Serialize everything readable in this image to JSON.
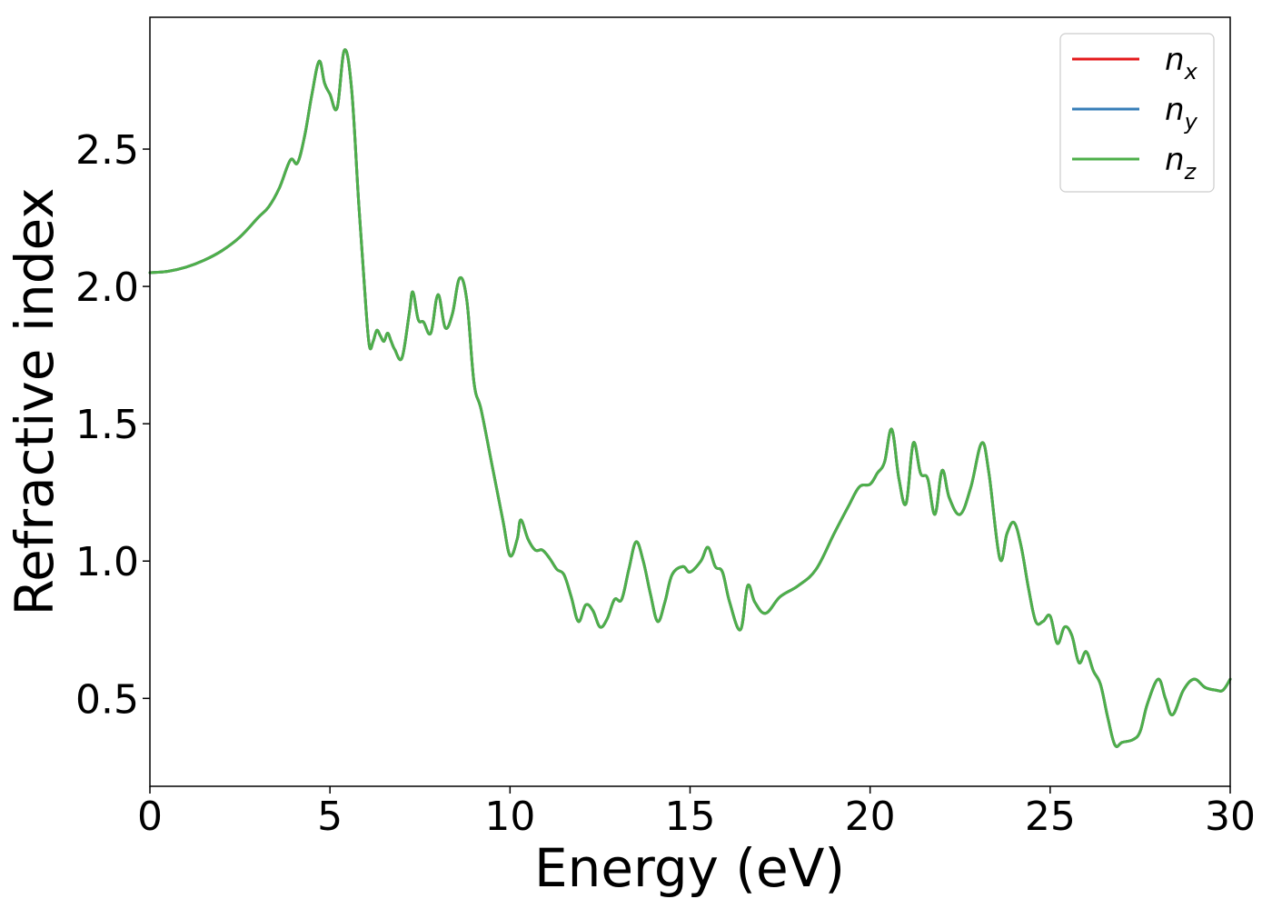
{
  "chart_data": {
    "type": "line",
    "title": "",
    "xlabel": "Energy (eV)",
    "ylabel": "Refractive index",
    "xlim": [
      0,
      30
    ],
    "ylim": [
      0.18,
      2.98
    ],
    "xticks": [
      0,
      5,
      10,
      15,
      20,
      25,
      30
    ],
    "xtick_labels": [
      "0",
      "5",
      "10",
      "15",
      "20",
      "25",
      "30"
    ],
    "yticks": [
      0.5,
      1.0,
      1.5,
      2.0,
      2.5
    ],
    "ytick_labels": [
      "0.5",
      "1.0",
      "1.5",
      "2.0",
      "2.5"
    ],
    "grid": false,
    "legend_position": "top-right",
    "x": [
      0,
      0.5,
      1,
      1.5,
      2,
      2.5,
      3,
      3.3,
      3.6,
      3.9,
      4.1,
      4.3,
      4.5,
      4.7,
      4.85,
      5.0,
      5.2,
      5.4,
      5.6,
      5.8,
      6.0,
      6.1,
      6.2,
      6.3,
      6.4,
      6.5,
      6.6,
      6.7,
      6.8,
      7.0,
      7.2,
      7.3,
      7.45,
      7.6,
      7.8,
      8.0,
      8.2,
      8.4,
      8.6,
      8.8,
      9.0,
      9.2,
      9.5,
      9.8,
      10.0,
      10.2,
      10.3,
      10.5,
      10.7,
      10.9,
      11.1,
      11.3,
      11.5,
      11.7,
      11.9,
      12.1,
      12.3,
      12.5,
      12.7,
      12.9,
      13.1,
      13.3,
      13.5,
      13.7,
      13.9,
      14.1,
      14.3,
      14.5,
      14.8,
      15.0,
      15.3,
      15.5,
      15.7,
      15.9,
      16.1,
      16.4,
      16.6,
      16.8,
      17.1,
      17.5,
      18.0,
      18.5,
      19.0,
      19.4,
      19.7,
      20.0,
      20.2,
      20.4,
      20.6,
      20.8,
      21.0,
      21.2,
      21.4,
      21.6,
      21.8,
      22.0,
      22.2,
      22.5,
      22.8,
      23.1,
      23.3,
      23.6,
      23.8,
      24.0,
      24.2,
      24.4,
      24.6,
      24.8,
      25.0,
      25.2,
      25.4,
      25.6,
      25.8,
      26.0,
      26.2,
      26.4,
      26.6,
      26.8,
      27.0,
      27.3,
      27.5,
      27.7,
      28.0,
      28.2,
      28.4,
      28.7,
      29.0,
      29.3,
      29.6,
      29.8,
      30.0
    ],
    "series": [
      {
        "name": "n_x",
        "color": "#e41a1c",
        "y": [
          2.05,
          2.055,
          2.07,
          2.095,
          2.13,
          2.18,
          2.25,
          2.29,
          2.36,
          2.46,
          2.45,
          2.55,
          2.7,
          2.82,
          2.74,
          2.7,
          2.65,
          2.86,
          2.72,
          2.3,
          1.92,
          1.78,
          1.8,
          1.84,
          1.82,
          1.8,
          1.83,
          1.8,
          1.77,
          1.74,
          1.9,
          1.98,
          1.88,
          1.87,
          1.83,
          1.97,
          1.85,
          1.9,
          2.03,
          1.95,
          1.65,
          1.55,
          1.35,
          1.15,
          1.02,
          1.08,
          1.15,
          1.08,
          1.04,
          1.04,
          1.01,
          0.97,
          0.95,
          0.87,
          0.78,
          0.84,
          0.82,
          0.76,
          0.79,
          0.86,
          0.86,
          0.97,
          1.07,
          1.0,
          0.88,
          0.78,
          0.85,
          0.95,
          0.98,
          0.96,
          1.0,
          1.05,
          0.98,
          0.96,
          0.85,
          0.75,
          0.91,
          0.85,
          0.81,
          0.87,
          0.91,
          0.97,
          1.1,
          1.2,
          1.27,
          1.28,
          1.32,
          1.36,
          1.48,
          1.3,
          1.21,
          1.43,
          1.32,
          1.3,
          1.17,
          1.33,
          1.23,
          1.17,
          1.27,
          1.43,
          1.32,
          1.01,
          1.1,
          1.14,
          1.05,
          0.9,
          0.78,
          0.78,
          0.8,
          0.7,
          0.76,
          0.73,
          0.63,
          0.67,
          0.6,
          0.55,
          0.43,
          0.33,
          0.34,
          0.35,
          0.38,
          0.48,
          0.57,
          0.5,
          0.44,
          0.53,
          0.57,
          0.54,
          0.53,
          0.53,
          0.57
        ]
      },
      {
        "name": "n_y",
        "color": "#377eb8",
        "y": [
          2.05,
          2.055,
          2.07,
          2.095,
          2.13,
          2.18,
          2.25,
          2.29,
          2.36,
          2.46,
          2.45,
          2.55,
          2.7,
          2.82,
          2.74,
          2.7,
          2.65,
          2.86,
          2.72,
          2.3,
          1.92,
          1.78,
          1.8,
          1.84,
          1.82,
          1.8,
          1.83,
          1.8,
          1.77,
          1.74,
          1.9,
          1.98,
          1.88,
          1.87,
          1.83,
          1.97,
          1.85,
          1.9,
          2.03,
          1.95,
          1.65,
          1.55,
          1.35,
          1.15,
          1.02,
          1.08,
          1.15,
          1.08,
          1.04,
          1.04,
          1.01,
          0.97,
          0.95,
          0.87,
          0.78,
          0.84,
          0.82,
          0.76,
          0.79,
          0.86,
          0.86,
          0.97,
          1.07,
          1.0,
          0.88,
          0.78,
          0.85,
          0.95,
          0.98,
          0.96,
          1.0,
          1.05,
          0.98,
          0.96,
          0.85,
          0.75,
          0.91,
          0.85,
          0.81,
          0.87,
          0.91,
          0.97,
          1.1,
          1.2,
          1.27,
          1.28,
          1.32,
          1.36,
          1.48,
          1.3,
          1.21,
          1.43,
          1.32,
          1.3,
          1.17,
          1.33,
          1.23,
          1.17,
          1.27,
          1.43,
          1.32,
          1.01,
          1.1,
          1.14,
          1.05,
          0.9,
          0.78,
          0.78,
          0.8,
          0.7,
          0.76,
          0.73,
          0.63,
          0.67,
          0.6,
          0.55,
          0.43,
          0.33,
          0.34,
          0.35,
          0.38,
          0.48,
          0.57,
          0.5,
          0.44,
          0.53,
          0.57,
          0.54,
          0.53,
          0.53,
          0.57
        ]
      },
      {
        "name": "n_z",
        "color": "#4daf4a",
        "y": [
          2.05,
          2.055,
          2.07,
          2.095,
          2.13,
          2.18,
          2.25,
          2.29,
          2.36,
          2.46,
          2.45,
          2.55,
          2.7,
          2.82,
          2.74,
          2.7,
          2.65,
          2.86,
          2.72,
          2.3,
          1.92,
          1.78,
          1.8,
          1.84,
          1.82,
          1.8,
          1.83,
          1.8,
          1.77,
          1.74,
          1.9,
          1.98,
          1.88,
          1.87,
          1.83,
          1.97,
          1.85,
          1.9,
          2.03,
          1.95,
          1.65,
          1.55,
          1.35,
          1.15,
          1.02,
          1.08,
          1.15,
          1.08,
          1.04,
          1.04,
          1.01,
          0.97,
          0.95,
          0.87,
          0.78,
          0.84,
          0.82,
          0.76,
          0.79,
          0.86,
          0.86,
          0.97,
          1.07,
          1.0,
          0.88,
          0.78,
          0.85,
          0.95,
          0.98,
          0.96,
          1.0,
          1.05,
          0.98,
          0.96,
          0.85,
          0.75,
          0.91,
          0.85,
          0.81,
          0.87,
          0.91,
          0.97,
          1.1,
          1.2,
          1.27,
          1.28,
          1.32,
          1.36,
          1.48,
          1.3,
          1.21,
          1.43,
          1.32,
          1.3,
          1.17,
          1.33,
          1.23,
          1.17,
          1.27,
          1.43,
          1.32,
          1.01,
          1.1,
          1.14,
          1.05,
          0.9,
          0.78,
          0.78,
          0.8,
          0.7,
          0.76,
          0.73,
          0.63,
          0.67,
          0.6,
          0.55,
          0.43,
          0.33,
          0.34,
          0.35,
          0.38,
          0.48,
          0.57,
          0.5,
          0.44,
          0.53,
          0.57,
          0.54,
          0.53,
          0.53,
          0.57
        ]
      }
    ],
    "legend": [
      {
        "base": "n",
        "sub": "x",
        "color": "#e41a1c"
      },
      {
        "base": "n",
        "sub": "y",
        "color": "#377eb8"
      },
      {
        "base": "n",
        "sub": "z",
        "color": "#4daf4a"
      }
    ]
  }
}
